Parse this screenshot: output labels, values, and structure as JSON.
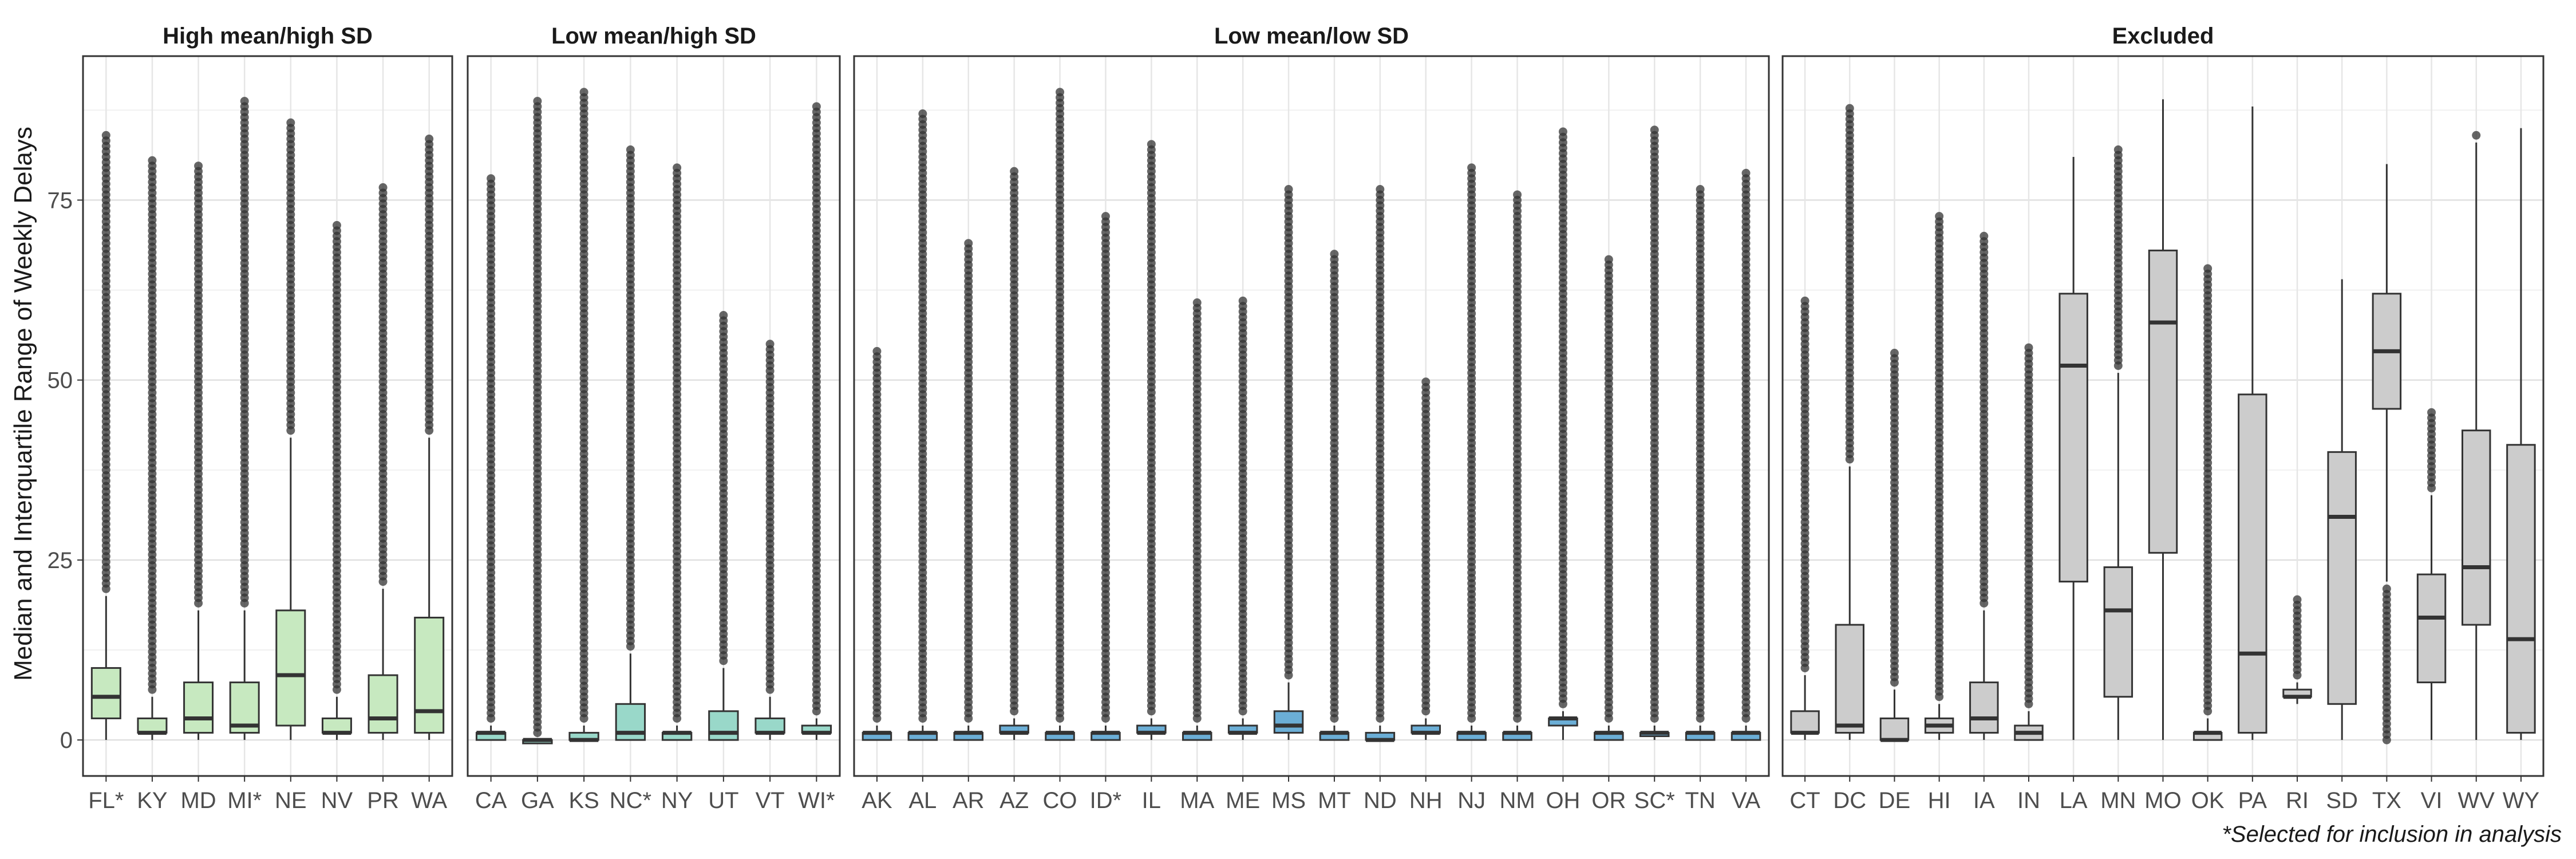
{
  "chart_data": {
    "type": "boxplot",
    "ylabel": "Median and Interquartile Range of Weekly Delays",
    "xlabel": "",
    "ylim": [
      -5,
      95
    ],
    "y_ticks": [
      0,
      25,
      50,
      75
    ],
    "grid": true,
    "caption": "*Selected for inclusion in analysis",
    "colors": {
      "High mean/high SD": "#c7e9c0",
      "Low mean/high SD": "#99d8c9",
      "Low mean/low SD": "#6baed6",
      "Excluded": "#cccccc",
      "outlier": "#333333",
      "median": "#333333"
    },
    "facets": [
      {
        "title": "High mean/high SD",
        "fill": "#c7e9c0",
        "categories": [
          "FL*",
          "KY",
          "MD",
          "MI*",
          "NE",
          "NV",
          "PR",
          "WA"
        ],
        "boxes": [
          {
            "state": "FL*",
            "whisker_low": 0,
            "q1": 3,
            "median": 6,
            "q3": 10,
            "whisker_high": 20,
            "outlier_max": 84
          },
          {
            "state": "KY",
            "whisker_low": 0,
            "q1": 1,
            "median": 1,
            "q3": 3,
            "whisker_high": 6,
            "outlier_max": 81
          },
          {
            "state": "MD",
            "whisker_low": 0,
            "q1": 1,
            "median": 3,
            "q3": 8,
            "whisker_high": 18,
            "outlier_max": 80
          },
          {
            "state": "MI*",
            "whisker_low": 0,
            "q1": 1,
            "median": 2,
            "q3": 8,
            "whisker_high": 18,
            "outlier_max": 89
          },
          {
            "state": "NE",
            "whisker_low": 0,
            "q1": 2,
            "median": 9,
            "q3": 18,
            "whisker_high": 42,
            "outlier_max": 86
          },
          {
            "state": "NV",
            "whisker_low": 0,
            "q1": 1,
            "median": 1,
            "q3": 3,
            "whisker_high": 6,
            "outlier_max": 72
          },
          {
            "state": "PR",
            "whisker_low": 0,
            "q1": 1,
            "median": 3,
            "q3": 9,
            "whisker_high": 21,
            "outlier_max": 77
          },
          {
            "state": "WA",
            "whisker_low": 0,
            "q1": 1,
            "median": 4,
            "q3": 17,
            "whisker_high": 42,
            "outlier_max": 84
          }
        ]
      },
      {
        "title": "Low mean/high SD",
        "fill": "#99d8c9",
        "categories": [
          "CA",
          "GA",
          "KS",
          "NC*",
          "NY",
          "UT",
          "VT",
          "WI*"
        ],
        "boxes": [
          {
            "state": "CA",
            "whisker_low": 0,
            "q1": 0,
            "median": 1,
            "q3": 1,
            "whisker_high": 2,
            "outlier_max": 78
          },
          {
            "state": "GA",
            "whisker_low": 0,
            "q1": 0,
            "median": 0,
            "q3": 0,
            "whisker_high": 0,
            "outlier_max": 89
          },
          {
            "state": "KS",
            "whisker_low": 0,
            "q1": 0,
            "median": 0,
            "q3": 1,
            "whisker_high": 2,
            "outlier_max": 90
          },
          {
            "state": "NC*",
            "whisker_low": 0,
            "q1": 0,
            "median": 1,
            "q3": 5,
            "whisker_high": 12,
            "outlier_max": 82
          },
          {
            "state": "NY",
            "whisker_low": 0,
            "q1": 0,
            "median": 1,
            "q3": 1,
            "whisker_high": 2,
            "outlier_max": 80
          },
          {
            "state": "UT",
            "whisker_low": 0,
            "q1": 0,
            "median": 1,
            "q3": 4,
            "whisker_high": 10,
            "outlier_max": 59
          },
          {
            "state": "VT",
            "whisker_low": 0,
            "q1": 1,
            "median": 1,
            "q3": 3,
            "whisker_high": 6,
            "outlier_max": 55
          },
          {
            "state": "WI*",
            "whisker_low": 0,
            "q1": 1,
            "median": 1,
            "q3": 2,
            "whisker_high": 3,
            "outlier_max": 88
          }
        ]
      },
      {
        "title": "Low mean/low SD",
        "fill": "#6baed6",
        "categories": [
          "AK",
          "AL",
          "AR",
          "AZ",
          "CO",
          "ID*",
          "IL",
          "MA",
          "ME",
          "MS",
          "MT",
          "ND",
          "NH",
          "NJ",
          "NM",
          "OH",
          "OR",
          "SC*",
          "TN",
          "VA"
        ],
        "boxes": [
          {
            "state": "AK",
            "whisker_low": 0,
            "q1": 0,
            "median": 1,
            "q3": 1,
            "whisker_high": 2,
            "outlier_max": 54
          },
          {
            "state": "AL",
            "whisker_low": 0,
            "q1": 0,
            "median": 1,
            "q3": 1,
            "whisker_high": 2,
            "outlier_max": 87
          },
          {
            "state": "AR",
            "whisker_low": 0,
            "q1": 0,
            "median": 1,
            "q3": 1,
            "whisker_high": 2,
            "outlier_max": 69
          },
          {
            "state": "AZ",
            "whisker_low": 0,
            "q1": 1,
            "median": 1,
            "q3": 2,
            "whisker_high": 3,
            "outlier_max": 79
          },
          {
            "state": "CO",
            "whisker_low": 0,
            "q1": 0,
            "median": 1,
            "q3": 1,
            "whisker_high": 2,
            "outlier_max": 90
          },
          {
            "state": "ID*",
            "whisker_low": 0,
            "q1": 0,
            "median": 1,
            "q3": 1,
            "whisker_high": 2,
            "outlier_max": 73
          },
          {
            "state": "IL",
            "whisker_low": 0,
            "q1": 1,
            "median": 1,
            "q3": 2,
            "whisker_high": 3,
            "outlier_max": 83
          },
          {
            "state": "MA",
            "whisker_low": 0,
            "q1": 0,
            "median": 1,
            "q3": 1,
            "whisker_high": 2,
            "outlier_max": 61
          },
          {
            "state": "ME",
            "whisker_low": 0,
            "q1": 1,
            "median": 1,
            "q3": 2,
            "whisker_high": 3,
            "outlier_max": 61
          },
          {
            "state": "MS",
            "whisker_low": 0,
            "q1": 1,
            "median": 2,
            "q3": 4,
            "whisker_high": 8,
            "outlier_max": 77
          },
          {
            "state": "MT",
            "whisker_low": 0,
            "q1": 0,
            "median": 1,
            "q3": 1,
            "whisker_high": 2,
            "outlier_max": 68
          },
          {
            "state": "ND",
            "whisker_low": 0,
            "q1": 0,
            "median": 0,
            "q3": 1,
            "whisker_high": 2,
            "outlier_max": 77
          },
          {
            "state": "NH",
            "whisker_low": 0,
            "q1": 1,
            "median": 1,
            "q3": 2,
            "whisker_high": 3,
            "outlier_max": 50
          },
          {
            "state": "NJ",
            "whisker_low": 0,
            "q1": 0,
            "median": 1,
            "q3": 1,
            "whisker_high": 2,
            "outlier_max": 80
          },
          {
            "state": "NM",
            "whisker_low": 0,
            "q1": 0,
            "median": 1,
            "q3": 1,
            "whisker_high": 2,
            "outlier_max": 76
          },
          {
            "state": "OH",
            "whisker_low": 0,
            "q1": 2,
            "median": 3,
            "q3": 3,
            "whisker_high": 4,
            "outlier_max": 85
          },
          {
            "state": "OR",
            "whisker_low": 0,
            "q1": 0,
            "median": 1,
            "q3": 1,
            "whisker_high": 2,
            "outlier_max": 67
          },
          {
            "state": "SC*",
            "whisker_low": 0,
            "q1": 1,
            "median": 1,
            "q3": 1,
            "whisker_high": 2,
            "outlier_max": 85
          },
          {
            "state": "TN",
            "whisker_low": 0,
            "q1": 0,
            "median": 1,
            "q3": 1,
            "whisker_high": 2,
            "outlier_max": 77
          },
          {
            "state": "VA",
            "whisker_low": 0,
            "q1": 0,
            "median": 1,
            "q3": 1,
            "whisker_high": 2,
            "outlier_max": 79
          }
        ]
      },
      {
        "title": "Excluded",
        "fill": "#cccccc",
        "categories": [
          "CT",
          "DC",
          "DE",
          "HI",
          "IA",
          "IN",
          "LA",
          "MN",
          "MO",
          "OK",
          "PA",
          "RI",
          "SD",
          "TX",
          "VI",
          "WV",
          "WY"
        ],
        "boxes": [
          {
            "state": "CT",
            "whisker_low": 0,
            "q1": 1,
            "median": 1,
            "q3": 4,
            "whisker_high": 9,
            "outlier_max": 61
          },
          {
            "state": "DC",
            "whisker_low": 0,
            "q1": 1,
            "median": 2,
            "q3": 16,
            "whisker_high": 38,
            "outlier_max": 88
          },
          {
            "state": "DE",
            "whisker_low": 0,
            "q1": 0,
            "median": 0,
            "q3": 3,
            "whisker_high": 7,
            "outlier_max": 54
          },
          {
            "state": "HI",
            "whisker_low": 0,
            "q1": 1,
            "median": 2,
            "q3": 3,
            "whisker_high": 5,
            "outlier_max": 73
          },
          {
            "state": "IA",
            "whisker_low": 0,
            "q1": 1,
            "median": 3,
            "q3": 8,
            "whisker_high": 18,
            "outlier_max": 70
          },
          {
            "state": "IN",
            "whisker_low": 0,
            "q1": 0,
            "median": 1,
            "q3": 2,
            "whisker_high": 4,
            "outlier_max": 55
          },
          {
            "state": "LA",
            "whisker_low": 0,
            "q1": 22,
            "median": 52,
            "q3": 62,
            "whisker_high": 81
          },
          {
            "state": "MN",
            "whisker_low": 0,
            "q1": 6,
            "median": 18,
            "q3": 24,
            "whisker_high": 51,
            "outlier_max": 82
          },
          {
            "state": "MO",
            "whisker_low": 0,
            "q1": 26,
            "median": 58,
            "q3": 68,
            "whisker_high": 89
          },
          {
            "state": "OK",
            "whisker_low": 0,
            "q1": 0,
            "median": 1,
            "q3": 1,
            "whisker_high": 3,
            "outlier_max": 66
          },
          {
            "state": "PA",
            "whisker_low": 0,
            "q1": 1,
            "median": 12,
            "q3": 48,
            "whisker_high": 88
          },
          {
            "state": "RI",
            "whisker_low": 5,
            "q1": 6,
            "median": 6,
            "q3": 7,
            "whisker_high": 8,
            "outlier_max": 20
          },
          {
            "state": "SD",
            "whisker_low": 0,
            "q1": 5,
            "median": 31,
            "q3": 40,
            "whisker_high": 64
          },
          {
            "state": "TX",
            "whisker_low": 22,
            "q1": 46,
            "median": 54,
            "q3": 62,
            "whisker_high": 80,
            "outlier_max": 21
          },
          {
            "state": "VI",
            "whisker_low": 0,
            "q1": 8,
            "median": 17,
            "q3": 23,
            "whisker_high": 34,
            "outlier_max": 46
          },
          {
            "state": "WV",
            "whisker_low": 0,
            "q1": 16,
            "median": 24,
            "q3": 43,
            "whisker_high": 83,
            "outlier_max": 84
          },
          {
            "state": "WY",
            "whisker_low": 0,
            "q1": 1,
            "median": 14,
            "q3": 41,
            "whisker_high": 85
          }
        ]
      }
    ]
  }
}
